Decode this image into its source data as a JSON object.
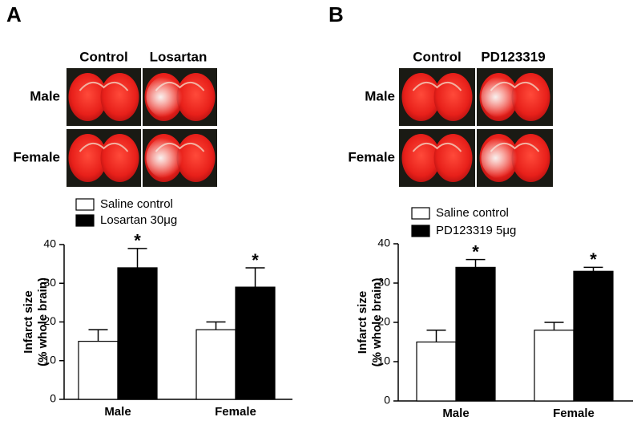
{
  "panels": [
    {
      "letter": "A",
      "columns": [
        "Control",
        "Losartan"
      ],
      "rows": [
        "Male",
        "Female"
      ]
    },
    {
      "letter": "B",
      "columns": [
        "Control",
        "PD123319"
      ],
      "rows": [
        "Male",
        "Female"
      ]
    }
  ],
  "chart_data": [
    {
      "type": "bar",
      "ylabel": [
        "Infarct size",
        "(% whole brain)"
      ],
      "categories": [
        "Male",
        "Female"
      ],
      "series": [
        {
          "name": "Saline control",
          "color": "#ffffff",
          "values": [
            15,
            18
          ],
          "errors": [
            3,
            2
          ]
        },
        {
          "name": "Losartan 30μg",
          "color": "#000000",
          "values": [
            34,
            29
          ],
          "errors": [
            5,
            5
          ],
          "annotations": [
            "*",
            "*"
          ]
        }
      ],
      "ylim": [
        0,
        40
      ],
      "yticks": [
        0,
        10,
        20,
        30,
        40
      ]
    },
    {
      "type": "bar",
      "ylabel": [
        "Infarct size",
        "(% whole brain)"
      ],
      "categories": [
        "Male",
        "Female"
      ],
      "series": [
        {
          "name": "Saline control",
          "color": "#ffffff",
          "values": [
            15,
            18
          ],
          "errors": [
            3,
            2
          ]
        },
        {
          "name": "PD123319 5μg",
          "color": "#000000",
          "values": [
            34,
            33
          ],
          "errors": [
            2,
            1
          ],
          "annotations": [
            "*",
            "*"
          ]
        }
      ],
      "ylim": [
        0,
        40
      ],
      "yticks": [
        0,
        10,
        20,
        30,
        40
      ]
    }
  ]
}
